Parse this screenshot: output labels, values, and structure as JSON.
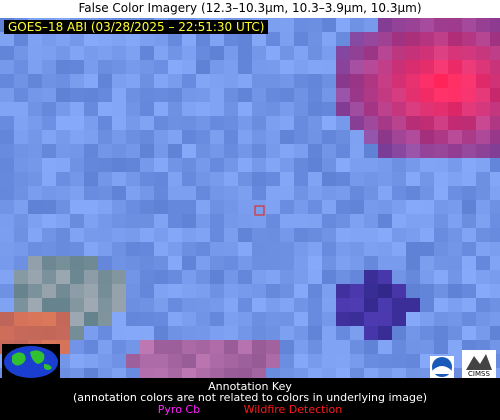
{
  "title": "False Color Imagery (12.3–10.3µm, 10.3–3.9µm, 10.3µm)",
  "overlay_label": "GOES–18 ABI (03/28/2025 – 22:51:30 UTC)",
  "annotation_key": {
    "title": "Annotation Key",
    "note": "(annotation colors are not related to colors in underlying image)",
    "items": [
      {
        "label": "Pyro Cb"
      },
      {
        "label": "Wildfire Detection"
      }
    ]
  },
  "logo_text": "CIMSS"
}
